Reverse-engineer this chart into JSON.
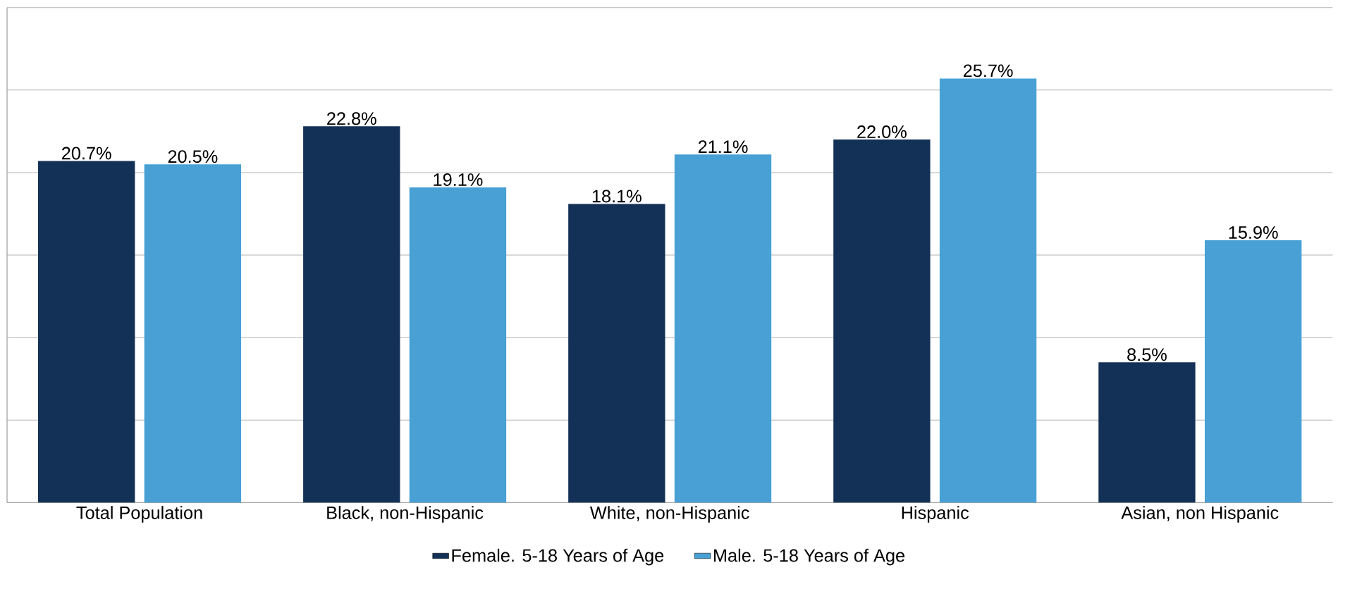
{
  "chart_data": {
    "type": "bar",
    "categories": [
      "Total Population",
      "Black, non-Hispanic",
      "White, non-Hispanic",
      "Hispanic",
      "Asian, non Hispanic"
    ],
    "series": [
      {
        "name": "Female. 5-18 Years of Age",
        "color": "#133156",
        "values": [
          20.7,
          22.8,
          18.1,
          22.0,
          8.5
        ],
        "value_labels": [
          "20.7%",
          "22.8%",
          "18.1%",
          "22.0%",
          "8.5%"
        ]
      },
      {
        "name": "Male. 5-18 Years of Age",
        "color": "#48a0d4",
        "values": [
          20.5,
          19.1,
          21.1,
          25.7,
          15.9
        ],
        "value_labels": [
          "20.5%",
          "19.1%",
          "21.1%",
          "25.7%",
          "15.9%"
        ]
      }
    ],
    "ylim": [
      0,
      30
    ],
    "yticks": [
      {
        "value": 0,
        "label": null
      },
      {
        "value": 5,
        "label": null
      },
      {
        "value": 10,
        "label": null
      },
      {
        "value": 15,
        "label": null
      },
      {
        "value": 20,
        "label": null
      },
      {
        "value": 25,
        "label": null
      },
      {
        "value": 30,
        "label": null
      }
    ],
    "tick_labels": "x",
    "grid": "y",
    "legend": "bottom"
  }
}
